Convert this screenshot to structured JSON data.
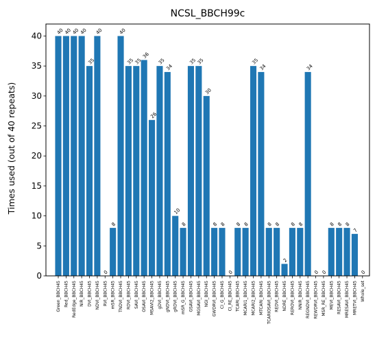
{
  "chart_data": {
    "type": "bar",
    "title": "NCSL_BBCH99c",
    "xlabel": "",
    "ylabel": "Times used (out of 40 repeats)",
    "ylim": [
      0,
      42
    ],
    "yticks": [
      0,
      5,
      10,
      15,
      20,
      25,
      30,
      35,
      40
    ],
    "grid": false,
    "bar_color": "#1f77b4",
    "categories": [
      "Green_BBCH45",
      "Red_BBCH45",
      "RedEdge_BBCH45",
      "NIR_BBCH45",
      "DVI_BBCH45",
      "NDVI_BBCH45",
      "RVI_BBCH45",
      "mSR_BBCH45",
      "TNDVI_BBCH45",
      "RDVI_BBCH45",
      "SAVI_BBCH45",
      "OSAVI_BBCH45",
      "MSAVI2_BBCH45",
      "gDVI_BBCH45",
      "gNDVI_BBCH45",
      "gRDVI_BBCH45",
      "mSR_G_BBCH45",
      "GSAVI_BBCH45",
      "MGSAVI_BBCH45",
      "NGI_BBCH45",
      "GWDRVI_BBCH45",
      "CI_G_BBCH45",
      "CI_RE_BBCH45",
      "TCARI_BBCH45",
      "MCARI1_BBCH45",
      "MCARI2_BBCH45",
      "MTCARI_BBCH45",
      "TCARIOSAVI_BBCH45",
      "REDVI_BBCH45",
      "NDRE_BBCH45",
      "REROVI_BBCH45",
      "NNIR_BBCH45",
      "REGNDVI_BBCH45",
      "REWDRVI_BBCH45",
      "MSR_RE_BBCH45",
      "MEVI_BBCH45",
      "RESAVI_BBCH45",
      "MRESAVI_BBCH45",
      "MRETVI_BBCH45",
      "Whole_set"
    ],
    "values": [
      40,
      40,
      40,
      40,
      35,
      40,
      0,
      8,
      40,
      35,
      35,
      36,
      26,
      35,
      34,
      10,
      8,
      35,
      35,
      30,
      8,
      8,
      0,
      8,
      8,
      35,
      34,
      8,
      8,
      2,
      8,
      8,
      34,
      0,
      0,
      8,
      8,
      8,
      7,
      0
    ]
  }
}
